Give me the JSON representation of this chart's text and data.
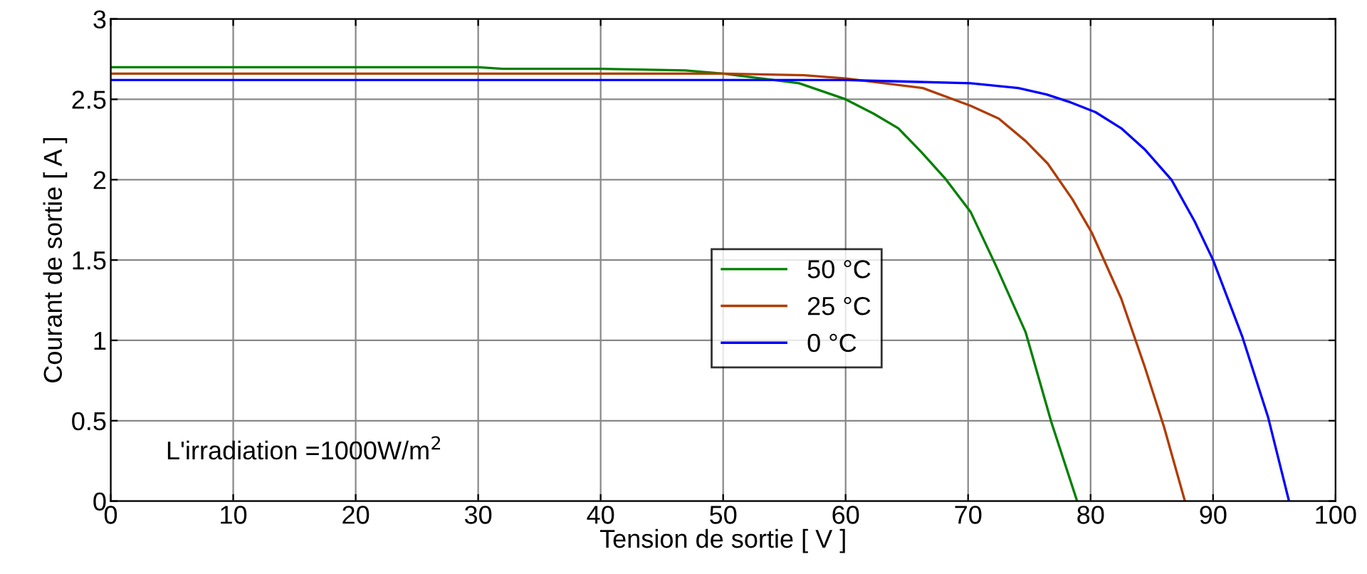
{
  "chart_data": {
    "type": "line",
    "xlabel": "Tension de sortie [ V ]",
    "ylabel": "Courant de sortie [ A ]",
    "xlim": [
      0,
      100
    ],
    "ylim": [
      0,
      3
    ],
    "xticks": [
      0,
      10,
      20,
      30,
      40,
      50,
      60,
      70,
      80,
      90,
      100
    ],
    "yticks": [
      0,
      0.5,
      1,
      1.5,
      2,
      2.5,
      3
    ],
    "grid": true,
    "legend": "center",
    "marker": "none",
    "line_style": "solid",
    "annotations": [
      "L'irradiation =1000W/m$^{2}$"
    ],
    "series": [
      {
        "name": "50 °C",
        "color": "#008000",
        "x": [
          0,
          30,
          32,
          40,
          46.9,
          50,
          56.2,
          60,
          62.3,
          64.3,
          66.2,
          68.1,
          70.2,
          72.3,
          74.7,
          76.8,
          78.9
        ],
        "values": [
          2.7,
          2.7,
          2.69,
          2.69,
          2.68,
          2.66,
          2.6,
          2.5,
          2.41,
          2.32,
          2.17,
          2.01,
          1.8,
          1.46,
          1.05,
          0.49,
          0
        ]
      },
      {
        "name": "25 °C",
        "color": "#b03c00",
        "x": [
          0,
          40,
          50,
          56.6,
          60,
          66.3,
          70.2,
          72.5,
          74.7,
          76.5,
          78.5,
          80.1,
          82.5,
          84.4,
          86.0,
          87.7
        ],
        "values": [
          2.66,
          2.66,
          2.66,
          2.65,
          2.63,
          2.57,
          2.46,
          2.38,
          2.24,
          2.1,
          1.88,
          1.67,
          1.26,
          0.84,
          0.46,
          0
        ]
      },
      {
        "name": "0 °C",
        "color": "#0000ff",
        "x": [
          0,
          50,
          60,
          70.2,
          74.1,
          76.4,
          78.4,
          80.4,
          82.5,
          84.4,
          86.6,
          88.5,
          90,
          92.4,
          94.5,
          96.2
        ],
        "values": [
          2.62,
          2.62,
          2.62,
          2.6,
          2.57,
          2.53,
          2.48,
          2.42,
          2.32,
          2.19,
          2.0,
          1.74,
          1.5,
          1.02,
          0.52,
          0
        ]
      }
    ]
  }
}
